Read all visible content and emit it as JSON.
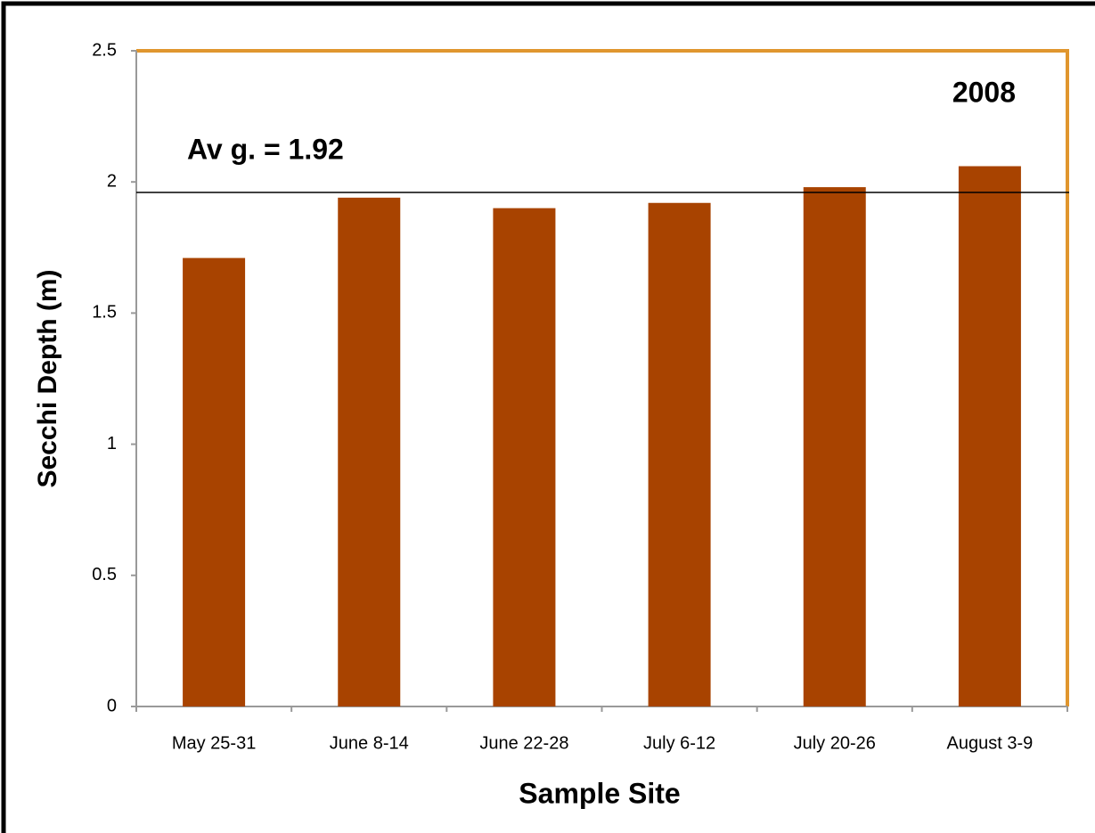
{
  "chart_data": {
    "type": "bar",
    "categories": [
      "May 25-31",
      "June 8-14",
      "June 22-28",
      "July 6-12",
      "July 20-26",
      "August 3-9"
    ],
    "values": [
      1.71,
      1.94,
      1.9,
      1.92,
      1.98,
      2.06
    ],
    "color": "#a84300",
    "frame_color": "#e0962e",
    "ylim": [
      0,
      2.5
    ],
    "yticks": [
      0,
      0.5,
      1,
      1.5,
      2,
      2.5
    ],
    "xlabel": "Sample Site",
    "ylabel": "Secchi Depth (m)",
    "reference_line": 1.96,
    "annotations": [
      "Av g. = 1.92",
      "2008"
    ],
    "grid": false
  }
}
